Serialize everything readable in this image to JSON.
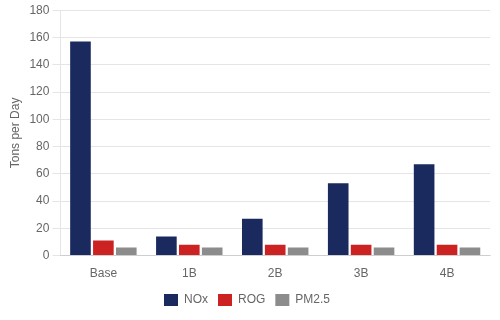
{
  "chart_data": {
    "type": "bar",
    "ylabel": "Tons per Day",
    "categories": [
      "Base",
      "1B",
      "2B",
      "3B",
      "4B"
    ],
    "series": [
      {
        "name": "NOx",
        "color": "#1B2A5E",
        "values": [
          157,
          14,
          27,
          53,
          67
        ]
      },
      {
        "name": "ROG",
        "color": "#CC2222",
        "values": [
          11,
          8,
          8,
          8,
          8
        ]
      },
      {
        "name": "PM2.5",
        "color": "#8C8C8C",
        "values": [
          6,
          6,
          6,
          6,
          6
        ]
      }
    ],
    "ylim": [
      0,
      180
    ],
    "yticks": [
      0,
      20,
      40,
      60,
      80,
      100,
      120,
      140,
      160,
      180
    ],
    "grid": true,
    "legend": "bottom"
  }
}
